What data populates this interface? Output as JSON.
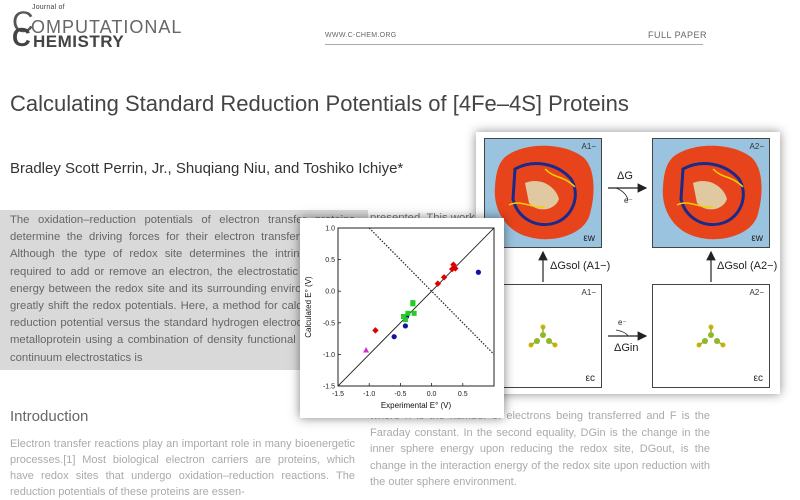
{
  "journal": {
    "logo_small": "Journal of",
    "logo_line1": "OMPUTATIONAL",
    "logo_line2": "HEMISTRY",
    "logo_c": "C",
    "url": "WWW.C-CHEM.ORG",
    "section": "FULL PAPER"
  },
  "article": {
    "title": "Calculating Standard Reduction Potentials of [4Fe–4S] Proteins",
    "authors": "Bradley Scott Perrin, Jr., Shuqiang Niu, and Toshiko Ichiye*",
    "abstract": "The oxidation–reduction potentials of electron transfer proteins determine the driving forces for their electron transfer reactions. Although the type of redox site determines the intrinsic energy required to add or remove an electron, the electrostatic interaction energy between the redox site and its surrounding environment can greatly shift the redox potentials. Here, a method for calculating the reduction potential versus the standard hydrogen electrode, E°, of a metalloprotein using a combination of density functional theory and continuum electrostatics is",
    "abstract_cont": "presented. This work",
    "intro_heading": "Introduction",
    "intro_text": "Electron transfer reactions play an important role in many bioenergetic processes.[1] Most biological electron carriers are proteins, which have redox sites that undergo oxidation–reduction reactions. The reduction potentials of these proteins are essen-",
    "right_text": "where n is the number of electrons being transferred and F is the Faraday constant. In the second equality, DGin is the change in the inner sphere energy upon reducing the redox site, DGout, is the change in the interaction energy of the redox site upon reduction with the outer sphere environment."
  },
  "scheme": {
    "label_tl": "A1−",
    "label_tr": "A2−",
    "label_bl": "A1−",
    "label_br": "A2−",
    "eps_w": "εw",
    "eps_c": "εc",
    "delta_g": "ΔG",
    "e_minus": "e⁻",
    "dg_sol_1": "ΔGsol (A1−)",
    "dg_sol_2": "ΔGsol (A2−)",
    "dg_in": "ΔGin",
    "colors": {
      "water": "#99c3df",
      "protein": "#e8441c"
    }
  },
  "chart_data": {
    "type": "scatter",
    "xlabel": "Experimental E° (V)",
    "ylabel": "Calculated E° (V)",
    "xlim": [
      -1.5,
      1.0
    ],
    "ylim": [
      -1.5,
      1.0
    ],
    "xticks": [
      "-1.5",
      "-1.0",
      "-0.5",
      "0.0",
      "0.5"
    ],
    "yticks": [
      "1.0",
      "0.5",
      "0.0",
      "-0.5",
      "-1.0",
      "-1.5"
    ],
    "lines": [
      {
        "style": "solid",
        "points": [
          [
            -1.5,
            -1.5
          ],
          [
            1.0,
            1.0
          ]
        ]
      },
      {
        "style": "dotted",
        "points": [
          [
            -1.0,
            1.0
          ],
          [
            1.0,
            -1.0
          ]
        ]
      }
    ],
    "series": [
      {
        "marker": "triangle",
        "color": "#cc33cc",
        "x": [
          -1.05
        ],
        "y": [
          -0.93
        ]
      },
      {
        "marker": "diamond",
        "color": "#dd0000",
        "x": [
          -0.9,
          0.1,
          0.2,
          0.33,
          0.35,
          0.38
        ],
        "y": [
          -0.62,
          0.12,
          0.22,
          0.35,
          0.42,
          0.36
        ]
      },
      {
        "marker": "circle",
        "color": "#1111aa",
        "x": [
          -0.6,
          -0.42,
          -0.4,
          0.75
        ],
        "y": [
          -0.72,
          -0.55,
          -0.4,
          0.3
        ]
      },
      {
        "marker": "square",
        "color": "#22cc22",
        "x": [
          -0.45,
          -0.42,
          -0.38,
          -0.3,
          -0.28,
          -0.3
        ],
        "y": [
          -0.4,
          -0.45,
          -0.35,
          -0.2,
          -0.35,
          -0.18
        ]
      }
    ]
  }
}
